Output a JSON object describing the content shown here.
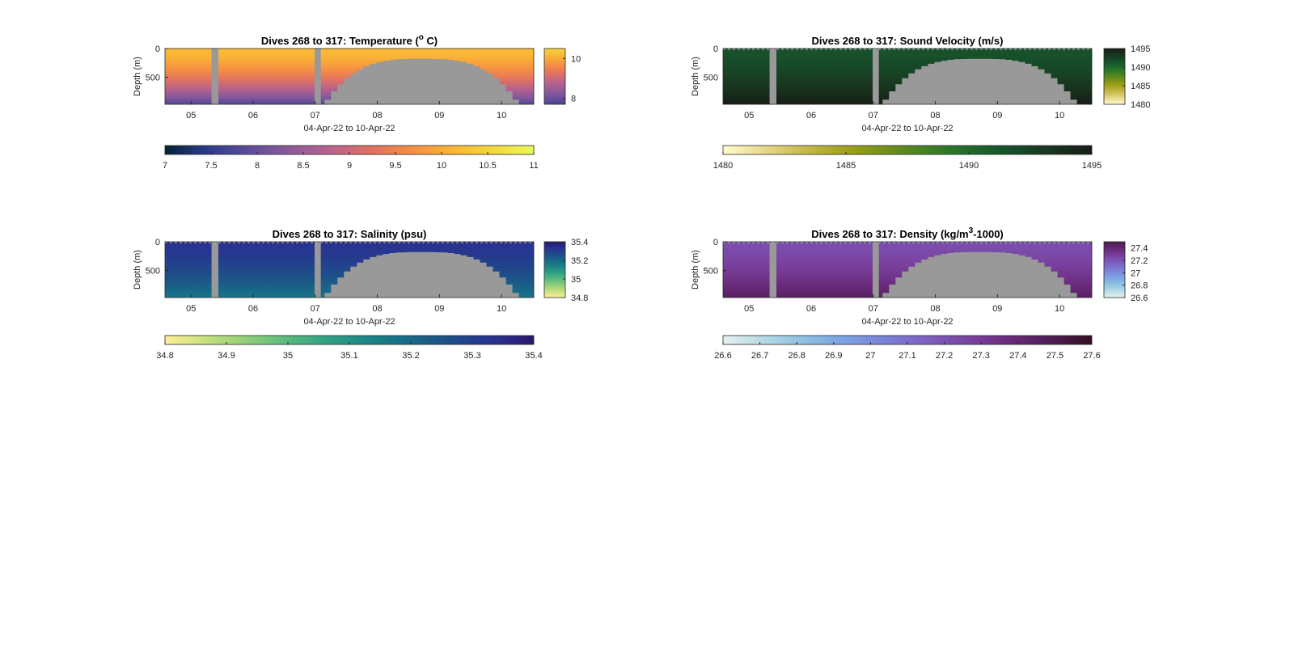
{
  "figure": {
    "background": "#ffffff",
    "mask_color": "#999999"
  },
  "chart_data": [
    {
      "type": "heatmap",
      "id": "temperature",
      "title_prefix": "Dives 268 to 317: Temperature (",
      "title_superscript": "o",
      "title_suffix": " C)",
      "xlabel": "04-Apr-22 to 10-Apr-22",
      "ylabel": "Depth (m)",
      "x_ticks": [
        "05",
        "06",
        "07",
        "08",
        "09",
        "10"
      ],
      "x_tick_days": [
        5,
        6,
        7,
        8,
        9,
        10
      ],
      "xlim_days": [
        4.58,
        10.52
      ],
      "y_ticks": [
        0,
        500
      ],
      "ylim": [
        0,
        970
      ],
      "clim": [
        7,
        11
      ],
      "colormap": "thermal",
      "colormap_stops": [
        "#032333",
        "#2b3a8c",
        "#5d4b9c",
        "#8a5a9a",
        "#b8628f",
        "#e07062",
        "#f58d45",
        "#fab534",
        "#f5d83c",
        "#e8fa5b"
      ],
      "surface_value": 10.2,
      "deep_value": 7.8,
      "colorbar_ticks": [
        "7",
        "7.5",
        "8",
        "8.5",
        "9",
        "9.5",
        "10",
        "10.5",
        "11"
      ],
      "colorbar_tick_values": [
        7,
        7.5,
        8,
        8.5,
        9,
        9.5,
        10,
        10.5,
        11
      ],
      "side_colorbar_ticks": [
        "10",
        "8"
      ],
      "side_colorbar_tick_values": [
        10,
        8
      ],
      "side_clim": [
        7.7,
        10.5
      ],
      "surface_line": false
    },
    {
      "type": "heatmap",
      "id": "sound-velocity",
      "title_prefix": "Dives 268 to 317: Sound Velocity (m/s)",
      "title_superscript": "",
      "title_suffix": "",
      "xlabel": "04-Apr-22 to 10-Apr-22",
      "ylabel": "Depth (m)",
      "x_ticks": [
        "05",
        "06",
        "07",
        "08",
        "09",
        "10"
      ],
      "x_tick_days": [
        5,
        6,
        7,
        8,
        9,
        10
      ],
      "xlim_days": [
        4.58,
        10.52
      ],
      "y_ticks": [
        0,
        500
      ],
      "ylim": [
        0,
        970
      ],
      "clim": [
        1480,
        1495
      ],
      "colormap": "speed",
      "colormap_stops": [
        "#fffdcd",
        "#e8d88b",
        "#c8b84a",
        "#a0a218",
        "#72901a",
        "#418022",
        "#1c6b2c",
        "#174f2a",
        "#18351f",
        "#171d16"
      ],
      "surface_value": 1491.5,
      "deep_value": 1495,
      "colorbar_ticks": [
        "1480",
        "1485",
        "1490",
        "1495"
      ],
      "colorbar_tick_values": [
        1480,
        1485,
        1490,
        1495
      ],
      "side_colorbar_ticks": [
        "1495",
        "1490",
        "1485",
        "1480"
      ],
      "side_colorbar_tick_values": [
        1495,
        1490,
        1485,
        1480
      ],
      "side_clim": [
        1480,
        1495
      ],
      "surface_line": true
    },
    {
      "type": "heatmap",
      "id": "salinity",
      "title_prefix": "Dives 268 to 317: Salinity (psu)",
      "title_superscript": "",
      "title_suffix": "",
      "xlabel": "04-Apr-22 to 10-Apr-22",
      "ylabel": "Depth (m)",
      "x_ticks": [
        "05",
        "06",
        "07",
        "08",
        "09",
        "10"
      ],
      "x_tick_days": [
        5,
        6,
        7,
        8,
        9,
        10
      ],
      "xlim_days": [
        4.58,
        10.52
      ],
      "y_ticks": [
        0,
        500
      ],
      "ylim": [
        0,
        970
      ],
      "clim": [
        34.8,
        35.4
      ],
      "colormap": "haline",
      "colormap_stops": [
        "#fdef9a",
        "#c7e07d",
        "#8ecf78",
        "#58b97e",
        "#2fa083",
        "#1a8486",
        "#186887",
        "#1e4c8a",
        "#2a3191",
        "#2a186c"
      ],
      "surface_value": 35.33,
      "deep_value": 35.17,
      "colorbar_ticks": [
        "34.8",
        "34.9",
        "35",
        "35.1",
        "35.2",
        "35.3",
        "35.4"
      ],
      "colorbar_tick_values": [
        34.8,
        34.9,
        35,
        35.1,
        35.2,
        35.3,
        35.4
      ],
      "side_colorbar_ticks": [
        "35.4",
        "35.2",
        "35",
        "34.8"
      ],
      "side_colorbar_tick_values": [
        35.4,
        35.2,
        35,
        34.8
      ],
      "side_clim": [
        34.8,
        35.4
      ],
      "surface_line": true
    },
    {
      "type": "heatmap",
      "id": "density",
      "title_prefix": "Dives 268 to 317: Density (kg/m",
      "title_superscript": "3",
      "title_suffix": "-1000)",
      "xlabel": "04-Apr-22 to 10-Apr-22",
      "ylabel": "Depth (m)",
      "x_ticks": [
        "05",
        "06",
        "07",
        "08",
        "09",
        "10"
      ],
      "x_tick_days": [
        5,
        6,
        7,
        8,
        9,
        10
      ],
      "xlim_days": [
        4.58,
        10.52
      ],
      "y_ticks": [
        0,
        500
      ],
      "ylim": [
        0,
        970
      ],
      "clim": [
        26.6,
        27.6
      ],
      "colormap": "dense",
      "colormap_stops": [
        "#e6f1f1",
        "#b4d9e3",
        "#8cbfe3",
        "#7aa1e2",
        "#7a80d6",
        "#7d5fc0",
        "#7a42a0",
        "#6a2a7b",
        "#501c55",
        "#360e24"
      ],
      "surface_value": 27.22,
      "deep_value": 27.45,
      "colorbar_ticks": [
        "26.6",
        "26.7",
        "26.8",
        "26.9",
        "27",
        "27.1",
        "27.2",
        "27.3",
        "27.4",
        "27.5",
        "27.6"
      ],
      "colorbar_tick_values": [
        26.6,
        26.7,
        26.8,
        26.9,
        27,
        27.1,
        27.2,
        27.3,
        27.4,
        27.5,
        27.6
      ],
      "side_colorbar_ticks": [
        "27.4",
        "27.2",
        "27",
        "26.8",
        "26.6"
      ],
      "side_colorbar_tick_values": [
        27.4,
        27.2,
        27,
        26.8,
        26.6
      ],
      "side_clim": [
        26.6,
        27.5
      ],
      "surface_line": true
    }
  ],
  "data_gaps_days": [
    [
      5.33,
      5.44
    ],
    [
      6.99,
      7.09
    ]
  ],
  "shallow_period_days": [
    7.15,
    10.28
  ],
  "shallow_dive_max_depth_m": 180
}
